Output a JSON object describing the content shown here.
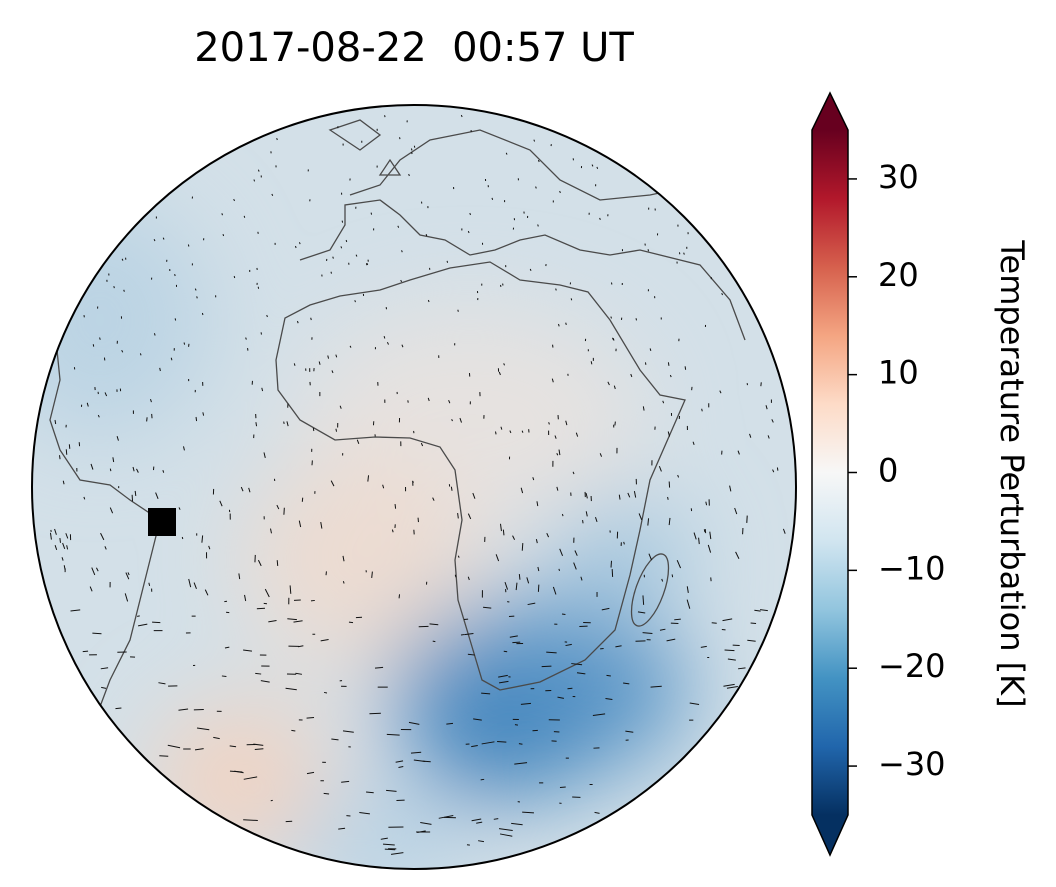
{
  "chart_data": {
    "type": "map",
    "title": "2017-08-22  00:57 UT",
    "colorbar": {
      "label": "Temperature Perturbation [K]",
      "lim": [
        -35,
        35
      ],
      "ticks": [
        30,
        20,
        10,
        0,
        {
          "value": -10,
          "label": "−10"
        },
        {
          "value": -20,
          "label": "−20"
        },
        {
          "value": -30,
          "label": "−30"
        }
      ],
      "colors": [
        "#053061",
        "#2166ac",
        "#4393c3",
        "#92c5de",
        "#d1e5f0",
        "#f7f7f7",
        "#fddbc7",
        "#f4a582",
        "#d6604d",
        "#b2182b",
        "#67001f"
      ],
      "extend": "both"
    }
  }
}
